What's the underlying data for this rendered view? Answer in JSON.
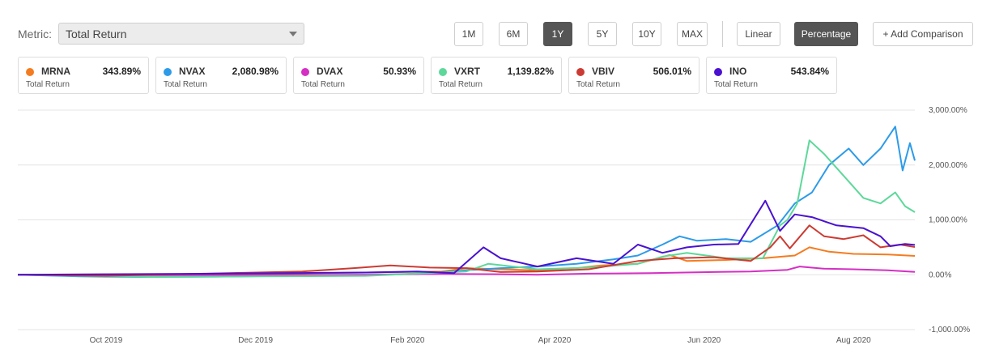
{
  "metric": {
    "label": "Metric:",
    "value": "Total Return"
  },
  "periods": [
    {
      "label": "1M",
      "active": false
    },
    {
      "label": "6M",
      "active": false
    },
    {
      "label": "1Y",
      "active": true
    },
    {
      "label": "5Y",
      "active": false
    },
    {
      "label": "10Y",
      "active": false
    },
    {
      "label": "MAX",
      "active": false
    }
  ],
  "scale": [
    {
      "label": "Linear",
      "active": false
    },
    {
      "label": "Percentage",
      "active": true
    }
  ],
  "add_comparison": "+ Add Comparison",
  "tickers": [
    {
      "symbol": "MRNA",
      "value": "343.89%",
      "sub": "Total Return",
      "color": "#f47c20"
    },
    {
      "symbol": "NVAX",
      "value": "2,080.98%",
      "sub": "Total Return",
      "color": "#2d9be8"
    },
    {
      "symbol": "DVAX",
      "value": "50.93%",
      "sub": "Total Return",
      "color": "#d52fc4"
    },
    {
      "symbol": "VXRT",
      "value": "1,139.82%",
      "sub": "Total Return",
      "color": "#5dd89a"
    },
    {
      "symbol": "VBIV",
      "value": "506.01%",
      "sub": "Total Return",
      "color": "#cc3b33"
    },
    {
      "symbol": "INO",
      "value": "543.84%",
      "sub": "Total Return",
      "color": "#4a12d0"
    }
  ],
  "chart_data": {
    "type": "line",
    "x_range": [
      "2019-08-26",
      "2020-08-26"
    ],
    "ylim": [
      -1000,
      3000
    ],
    "y_ticks": [
      3000,
      2000,
      1000,
      0,
      -1000
    ],
    "y_tick_labels": [
      "3,000.00%",
      "2,000.00%",
      "1,000.00%",
      "0.00%",
      "-1,000.00%"
    ],
    "x_ticks": [
      "2019-10-01",
      "2019-12-01",
      "2020-02-01",
      "2020-04-01",
      "2020-06-01",
      "2020-08-01"
    ],
    "x_tick_labels": [
      "Oct 2019",
      "Dec 2019",
      "Feb 2020",
      "Apr 2020",
      "Jun 2020",
      "Aug 2020"
    ],
    "grid": true,
    "series": [
      {
        "name": "MRNA",
        "color": "#f47c20",
        "points": [
          [
            "2019-08-26",
            0
          ],
          [
            "2019-10-01",
            -10
          ],
          [
            "2019-11-15",
            15
          ],
          [
            "2019-12-15",
            25
          ],
          [
            "2020-01-15",
            40
          ],
          [
            "2020-02-15",
            60
          ],
          [
            "2020-02-25",
            120
          ],
          [
            "2020-03-10",
            100
          ],
          [
            "2020-03-25",
            80
          ],
          [
            "2020-04-10",
            120
          ],
          [
            "2020-04-20",
            170
          ],
          [
            "2020-05-05",
            200
          ],
          [
            "2020-05-18",
            360
          ],
          [
            "2020-05-25",
            250
          ],
          [
            "2020-06-10",
            270
          ],
          [
            "2020-06-25",
            300
          ],
          [
            "2020-07-08",
            350
          ],
          [
            "2020-07-14",
            500
          ],
          [
            "2020-07-22",
            420
          ],
          [
            "2020-08-01",
            380
          ],
          [
            "2020-08-15",
            370
          ],
          [
            "2020-08-26",
            343.89
          ]
        ]
      },
      {
        "name": "NVAX",
        "color": "#2d9be8",
        "points": [
          [
            "2019-08-26",
            0
          ],
          [
            "2019-09-20",
            -30
          ],
          [
            "2019-10-15",
            -40
          ],
          [
            "2019-11-15",
            -35
          ],
          [
            "2019-12-15",
            -20
          ],
          [
            "2020-01-15",
            -10
          ],
          [
            "2020-02-10",
            30
          ],
          [
            "2020-02-25",
            80
          ],
          [
            "2020-03-10",
            120
          ],
          [
            "2020-03-25",
            150
          ],
          [
            "2020-04-10",
            200
          ],
          [
            "2020-04-25",
            280
          ],
          [
            "2020-05-05",
            350
          ],
          [
            "2020-05-15",
            550
          ],
          [
            "2020-05-22",
            700
          ],
          [
            "2020-05-29",
            620
          ],
          [
            "2020-06-10",
            650
          ],
          [
            "2020-06-20",
            600
          ],
          [
            "2020-07-01",
            900
          ],
          [
            "2020-07-08",
            1300
          ],
          [
            "2020-07-15",
            1500
          ],
          [
            "2020-07-22",
            2000
          ],
          [
            "2020-07-30",
            2300
          ],
          [
            "2020-08-05",
            2000
          ],
          [
            "2020-08-12",
            2300
          ],
          [
            "2020-08-18",
            2700
          ],
          [
            "2020-08-21",
            1900
          ],
          [
            "2020-08-24",
            2400
          ],
          [
            "2020-08-26",
            2080.98
          ]
        ]
      },
      {
        "name": "DVAX",
        "color": "#d52fc4",
        "points": [
          [
            "2019-08-26",
            0
          ],
          [
            "2019-10-01",
            -10
          ],
          [
            "2019-12-01",
            -5
          ],
          [
            "2020-01-15",
            0
          ],
          [
            "2020-02-15",
            15
          ],
          [
            "2020-03-10",
            10
          ],
          [
            "2020-03-25",
            0
          ],
          [
            "2020-04-15",
            20
          ],
          [
            "2020-05-10",
            30
          ],
          [
            "2020-06-05",
            50
          ],
          [
            "2020-06-20",
            60
          ],
          [
            "2020-07-05",
            90
          ],
          [
            "2020-07-10",
            150
          ],
          [
            "2020-07-20",
            110
          ],
          [
            "2020-08-01",
            100
          ],
          [
            "2020-08-15",
            80
          ],
          [
            "2020-08-26",
            50.93
          ]
        ]
      },
      {
        "name": "VXRT",
        "color": "#5dd89a",
        "points": [
          [
            "2019-08-26",
            0
          ],
          [
            "2019-09-20",
            -20
          ],
          [
            "2019-10-20",
            -40
          ],
          [
            "2019-12-01",
            -30
          ],
          [
            "2020-01-15",
            -20
          ],
          [
            "2020-02-05",
            20
          ],
          [
            "2020-02-25",
            60
          ],
          [
            "2020-03-05",
            200
          ],
          [
            "2020-03-15",
            150
          ],
          [
            "2020-03-25",
            100
          ],
          [
            "2020-04-15",
            130
          ],
          [
            "2020-05-05",
            200
          ],
          [
            "2020-05-15",
            330
          ],
          [
            "2020-05-25",
            400
          ],
          [
            "2020-06-10",
            300
          ],
          [
            "2020-06-25",
            300
          ],
          [
            "2020-07-02",
            900
          ],
          [
            "2020-07-05",
            1000
          ],
          [
            "2020-07-09",
            1300
          ],
          [
            "2020-07-14",
            2450
          ],
          [
            "2020-07-20",
            2200
          ],
          [
            "2020-07-30",
            1700
          ],
          [
            "2020-08-05",
            1400
          ],
          [
            "2020-08-12",
            1300
          ],
          [
            "2020-08-18",
            1500
          ],
          [
            "2020-08-22",
            1250
          ],
          [
            "2020-08-26",
            1139.82
          ]
        ]
      },
      {
        "name": "VBIV",
        "color": "#cc3b33",
        "points": [
          [
            "2019-08-26",
            0
          ],
          [
            "2019-10-01",
            -20
          ],
          [
            "2019-11-10",
            20
          ],
          [
            "2019-12-20",
            60
          ],
          [
            "2020-01-10",
            120
          ],
          [
            "2020-01-25",
            170
          ],
          [
            "2020-02-10",
            130
          ],
          [
            "2020-02-25",
            120
          ],
          [
            "2020-03-10",
            50
          ],
          [
            "2020-03-25",
            60
          ],
          [
            "2020-04-15",
            100
          ],
          [
            "2020-05-05",
            250
          ],
          [
            "2020-05-20",
            300
          ],
          [
            "2020-06-05",
            320
          ],
          [
            "2020-06-20",
            250
          ],
          [
            "2020-06-28",
            500
          ],
          [
            "2020-07-02",
            700
          ],
          [
            "2020-07-06",
            480
          ],
          [
            "2020-07-14",
            900
          ],
          [
            "2020-07-20",
            700
          ],
          [
            "2020-07-28",
            650
          ],
          [
            "2020-08-05",
            720
          ],
          [
            "2020-08-12",
            500
          ],
          [
            "2020-08-20",
            550
          ],
          [
            "2020-08-26",
            506.01
          ]
        ]
      },
      {
        "name": "INO",
        "color": "#4a12d0",
        "points": [
          [
            "2019-08-26",
            0
          ],
          [
            "2019-10-01",
            10
          ],
          [
            "2019-11-15",
            20
          ],
          [
            "2019-12-15",
            30
          ],
          [
            "2020-01-15",
            40
          ],
          [
            "2020-02-05",
            60
          ],
          [
            "2020-02-20",
            30
          ],
          [
            "2020-03-03",
            500
          ],
          [
            "2020-03-10",
            300
          ],
          [
            "2020-03-25",
            150
          ],
          [
            "2020-04-10",
            300
          ],
          [
            "2020-04-25",
            200
          ],
          [
            "2020-05-05",
            550
          ],
          [
            "2020-05-15",
            400
          ],
          [
            "2020-05-25",
            500
          ],
          [
            "2020-06-05",
            550
          ],
          [
            "2020-06-15",
            560
          ],
          [
            "2020-06-26",
            1350
          ],
          [
            "2020-07-02",
            800
          ],
          [
            "2020-07-08",
            1100
          ],
          [
            "2020-07-15",
            1050
          ],
          [
            "2020-07-25",
            900
          ],
          [
            "2020-08-05",
            850
          ],
          [
            "2020-08-12",
            700
          ],
          [
            "2020-08-16",
            520
          ],
          [
            "2020-08-22",
            560
          ],
          [
            "2020-08-26",
            543.84
          ]
        ]
      }
    ]
  }
}
